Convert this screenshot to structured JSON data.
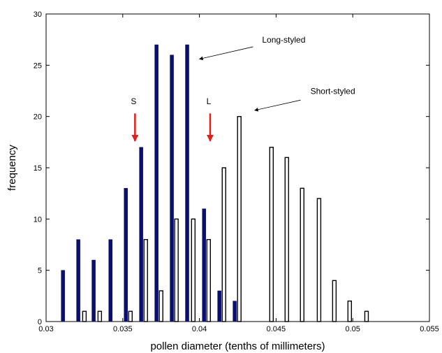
{
  "chart_data": {
    "type": "bar",
    "xlabel": "pollen diameter (tenths of millimeters)",
    "ylabel": "frequency",
    "xlim": [
      0.03,
      0.055
    ],
    "ylim": [
      0,
      30
    ],
    "xticks": [
      "0.03",
      "0.035",
      "0.04",
      "0.045",
      "0.05",
      "0.055"
    ],
    "yticks": [
      "0",
      "5",
      "10",
      "15",
      "20",
      "25",
      "30"
    ],
    "grid": false,
    "colors": {
      "long": "#0a0f6e",
      "short": "#ffffff",
      "arrow_red": "#e0201b"
    },
    "series": [
      {
        "name": "Long-styled",
        "x": [
          0.0311,
          0.0321,
          0.0331,
          0.0342,
          0.0352,
          0.0362,
          0.0372,
          0.0382,
          0.0392,
          0.0403,
          0.0413,
          0.0423
        ],
        "values": [
          5,
          8,
          6,
          8,
          13,
          17,
          27,
          26,
          27,
          11,
          3,
          2
        ]
      },
      {
        "name": "Short-styled",
        "x": [
          0.0325,
          0.0335,
          0.0355,
          0.0365,
          0.0375,
          0.0385,
          0.0396,
          0.0406,
          0.0416,
          0.0426,
          0.0447,
          0.0457,
          0.0467,
          0.0478,
          0.0488,
          0.0498,
          0.0509
        ],
        "values": [
          1,
          1,
          1,
          8,
          3,
          10,
          10,
          8,
          15,
          20,
          17,
          16,
          13,
          12,
          4,
          2,
          1
        ]
      }
    ],
    "annotations": [
      {
        "id": "S",
        "text": "S",
        "x": 0.0358,
        "y_text": 21.2,
        "arrow_from": 20.3,
        "arrow_to": 17.6,
        "color": "#e0201b"
      },
      {
        "id": "L",
        "text": "L",
        "x": 0.0407,
        "y_text": 21.2,
        "arrow_from": 20.3,
        "arrow_to": 17.6,
        "color": "#e0201b"
      },
      {
        "id": "long-styled",
        "text": "Long-styled",
        "text_x": 0.0455,
        "text_y": 27.2,
        "arrow_from_x": 0.0435,
        "arrow_from_y": 26.8,
        "arrow_to_x": 0.04,
        "arrow_to_y": 25.6,
        "color": "#000000"
      },
      {
        "id": "short-styled",
        "text": "Short-styled",
        "text_x": 0.0487,
        "text_y": 22.2,
        "arrow_from_x": 0.0466,
        "arrow_from_y": 21.6,
        "arrow_to_x": 0.0436,
        "arrow_to_y": 20.6,
        "color": "#000000"
      }
    ]
  }
}
